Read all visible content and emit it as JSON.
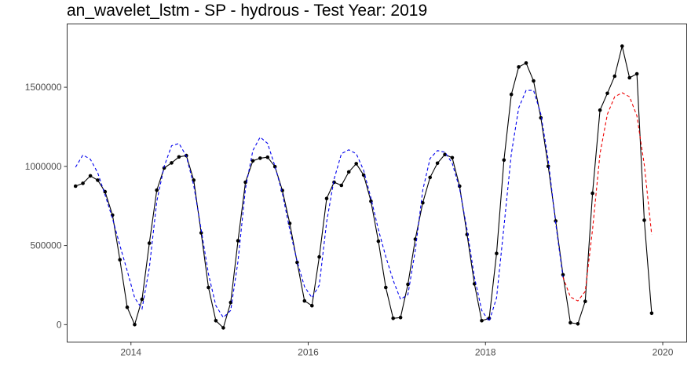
{
  "chart_data": {
    "type": "line",
    "title": "an_wavelet_lstm - SP - hydrous - Test Year: 2019",
    "xlabel": "",
    "ylabel": "",
    "xlim": [
      2013.28,
      2020.27
    ],
    "ylim": [
      -110000,
      1900000
    ],
    "x_ticks": [
      {
        "value": 2014,
        "label": "2014"
      },
      {
        "value": 2016,
        "label": "2016"
      },
      {
        "value": 2018,
        "label": "2018"
      },
      {
        "value": 2020,
        "label": "2020"
      }
    ],
    "y_ticks": [
      {
        "value": 0,
        "label": "0"
      },
      {
        "value": 500000,
        "label": "500000"
      },
      {
        "value": 1000000,
        "label": "1000000"
      },
      {
        "value": 1500000,
        "label": "1500000"
      }
    ],
    "grid": false,
    "legend": "none",
    "series": [
      {
        "role": "observed",
        "color": "#000000",
        "dash": "solid",
        "markers": true,
        "points": [
          [
            2013.375,
            875000
          ],
          [
            2013.458,
            893000
          ],
          [
            2013.542,
            940000
          ],
          [
            2013.625,
            913000
          ],
          [
            2013.708,
            840000
          ],
          [
            2013.792,
            692000
          ],
          [
            2013.875,
            410000
          ],
          [
            2013.958,
            110000
          ],
          [
            2014.042,
            0
          ],
          [
            2014.125,
            160000
          ],
          [
            2014.208,
            515000
          ],
          [
            2014.292,
            850000
          ],
          [
            2014.375,
            990000
          ],
          [
            2014.458,
            1022000
          ],
          [
            2014.542,
            1060000
          ],
          [
            2014.625,
            1068000
          ],
          [
            2014.708,
            913000
          ],
          [
            2014.792,
            580000
          ],
          [
            2014.875,
            235000
          ],
          [
            2014.958,
            25000
          ],
          [
            2015.042,
            -20000
          ],
          [
            2015.125,
            140000
          ],
          [
            2015.208,
            530000
          ],
          [
            2015.292,
            900000
          ],
          [
            2015.375,
            1035000
          ],
          [
            2015.458,
            1052000
          ],
          [
            2015.542,
            1058000
          ],
          [
            2015.625,
            998000
          ],
          [
            2015.708,
            848000
          ],
          [
            2015.792,
            640000
          ],
          [
            2015.875,
            393000
          ],
          [
            2015.958,
            150000
          ],
          [
            2016.042,
            120000
          ],
          [
            2016.125,
            428000
          ],
          [
            2016.208,
            797000
          ],
          [
            2016.292,
            900000
          ],
          [
            2016.375,
            880000
          ],
          [
            2016.458,
            965000
          ],
          [
            2016.542,
            1017000
          ],
          [
            2016.625,
            945000
          ],
          [
            2016.708,
            780000
          ],
          [
            2016.792,
            527000
          ],
          [
            2016.875,
            235000
          ],
          [
            2016.958,
            40000
          ],
          [
            2017.042,
            45000
          ],
          [
            2017.125,
            255000
          ],
          [
            2017.208,
            540000
          ],
          [
            2017.292,
            770000
          ],
          [
            2017.375,
            930000
          ],
          [
            2017.458,
            1020000
          ],
          [
            2017.542,
            1075000
          ],
          [
            2017.625,
            1055000
          ],
          [
            2017.708,
            875000
          ],
          [
            2017.792,
            570000
          ],
          [
            2017.875,
            258000
          ],
          [
            2017.958,
            25000
          ],
          [
            2018.042,
            40000
          ],
          [
            2018.125,
            450000
          ],
          [
            2018.208,
            1040000
          ],
          [
            2018.292,
            1455000
          ],
          [
            2018.375,
            1628000
          ],
          [
            2018.458,
            1653000
          ],
          [
            2018.542,
            1540000
          ],
          [
            2018.625,
            1307000
          ],
          [
            2018.708,
            1000000
          ],
          [
            2018.792,
            655000
          ],
          [
            2018.875,
            315000
          ],
          [
            2018.958,
            12000
          ],
          [
            2019.042,
            5000
          ],
          [
            2019.125,
            147000
          ],
          [
            2019.208,
            830000
          ],
          [
            2019.292,
            1355000
          ],
          [
            2019.375,
            1462000
          ],
          [
            2019.458,
            1570000
          ],
          [
            2019.542,
            1760000
          ],
          [
            2019.625,
            1560000
          ],
          [
            2019.708,
            1585000
          ],
          [
            2019.792,
            660000
          ],
          [
            2019.875,
            72000
          ]
        ]
      },
      {
        "role": "fitted",
        "color": "#0000ee",
        "dash": "dashed",
        "markers": false,
        "points": [
          [
            2013.375,
            995000
          ],
          [
            2013.458,
            1072000
          ],
          [
            2013.542,
            1045000
          ],
          [
            2013.625,
            960000
          ],
          [
            2013.708,
            820000
          ],
          [
            2013.792,
            670000
          ],
          [
            2013.875,
            500000
          ],
          [
            2013.958,
            340000
          ],
          [
            2014.042,
            170000
          ],
          [
            2014.125,
            100000
          ],
          [
            2014.208,
            360000
          ],
          [
            2014.292,
            780000
          ],
          [
            2014.375,
            1000000
          ],
          [
            2014.458,
            1130000
          ],
          [
            2014.542,
            1145000
          ],
          [
            2014.625,
            1065000
          ],
          [
            2014.708,
            880000
          ],
          [
            2014.792,
            600000
          ],
          [
            2014.875,
            320000
          ],
          [
            2014.958,
            120000
          ],
          [
            2015.042,
            45000
          ],
          [
            2015.125,
            90000
          ],
          [
            2015.208,
            400000
          ],
          [
            2015.292,
            860000
          ],
          [
            2015.375,
            1100000
          ],
          [
            2015.458,
            1185000
          ],
          [
            2015.542,
            1145000
          ],
          [
            2015.625,
            1000000
          ],
          [
            2015.708,
            830000
          ],
          [
            2015.792,
            600000
          ],
          [
            2015.875,
            400000
          ],
          [
            2015.958,
            240000
          ],
          [
            2016.042,
            170000
          ],
          [
            2016.125,
            250000
          ],
          [
            2016.208,
            650000
          ],
          [
            2016.292,
            920000
          ],
          [
            2016.375,
            1080000
          ],
          [
            2016.458,
            1105000
          ],
          [
            2016.542,
            1080000
          ],
          [
            2016.625,
            975000
          ],
          [
            2016.708,
            800000
          ],
          [
            2016.792,
            600000
          ],
          [
            2016.875,
            430000
          ],
          [
            2016.958,
            280000
          ],
          [
            2017.042,
            160000
          ],
          [
            2017.125,
            190000
          ],
          [
            2017.208,
            470000
          ],
          [
            2017.292,
            850000
          ],
          [
            2017.375,
            1050000
          ],
          [
            2017.458,
            1100000
          ],
          [
            2017.542,
            1090000
          ],
          [
            2017.625,
            1020000
          ],
          [
            2017.708,
            860000
          ],
          [
            2017.792,
            600000
          ],
          [
            2017.875,
            300000
          ],
          [
            2017.958,
            90000
          ],
          [
            2018.042,
            20000
          ],
          [
            2018.125,
            170000
          ],
          [
            2018.208,
            620000
          ],
          [
            2018.292,
            1080000
          ],
          [
            2018.375,
            1370000
          ],
          [
            2018.458,
            1480000
          ],
          [
            2018.542,
            1480000
          ],
          [
            2018.625,
            1330000
          ],
          [
            2018.708,
            1040000
          ],
          [
            2018.792,
            640000
          ],
          [
            2018.875,
            300000
          ]
        ]
      },
      {
        "role": "forecast",
        "color": "#ee0000",
        "dash": "dashed",
        "markers": false,
        "points": [
          [
            2018.875,
            300000
          ],
          [
            2018.958,
            175000
          ],
          [
            2019.042,
            150000
          ],
          [
            2019.125,
            210000
          ],
          [
            2019.208,
            600000
          ],
          [
            2019.292,
            1080000
          ],
          [
            2019.375,
            1330000
          ],
          [
            2019.458,
            1440000
          ],
          [
            2019.542,
            1465000
          ],
          [
            2019.625,
            1440000
          ],
          [
            2019.708,
            1320000
          ],
          [
            2019.792,
            1010000
          ],
          [
            2019.875,
            570000
          ]
        ]
      }
    ]
  }
}
